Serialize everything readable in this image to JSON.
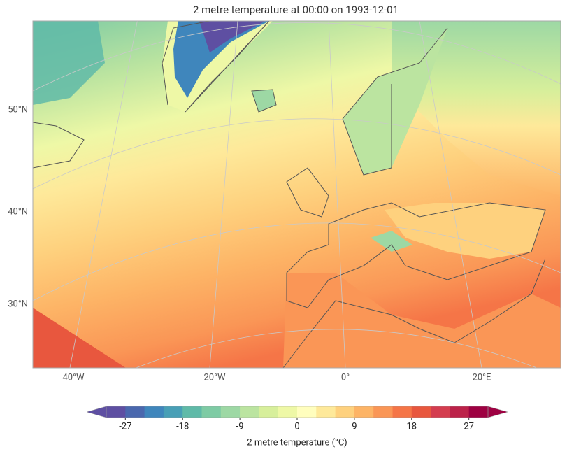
{
  "map": {
    "title": "2 metre temperature at 00:00 on 1993-12-01",
    "lat_labels": [
      "50°N",
      "40°N",
      "30°N"
    ],
    "lon_labels": [
      "40°W",
      "20°W",
      "0°",
      "20°E"
    ],
    "colorbar": {
      "label": "2 metre temperature (°C)",
      "lim": [
        -30,
        30
      ],
      "ticks": [
        -27,
        -18,
        -9,
        0,
        9,
        18,
        27
      ],
      "colors": [
        "#5e4fa2",
        "#4a68ae",
        "#3f86bc",
        "#489fb6",
        "#5fbaa8",
        "#7ecba4",
        "#9dd8a4",
        "#bbe4a0",
        "#d7ef9b",
        "#eef8a6",
        "#fffebe",
        "#fee99a",
        "#fed17e",
        "#fdb466",
        "#fa9656",
        "#f57547",
        "#e8573e",
        "#d43d4f",
        "#bc2249",
        "#9e0142"
      ]
    }
  }
}
